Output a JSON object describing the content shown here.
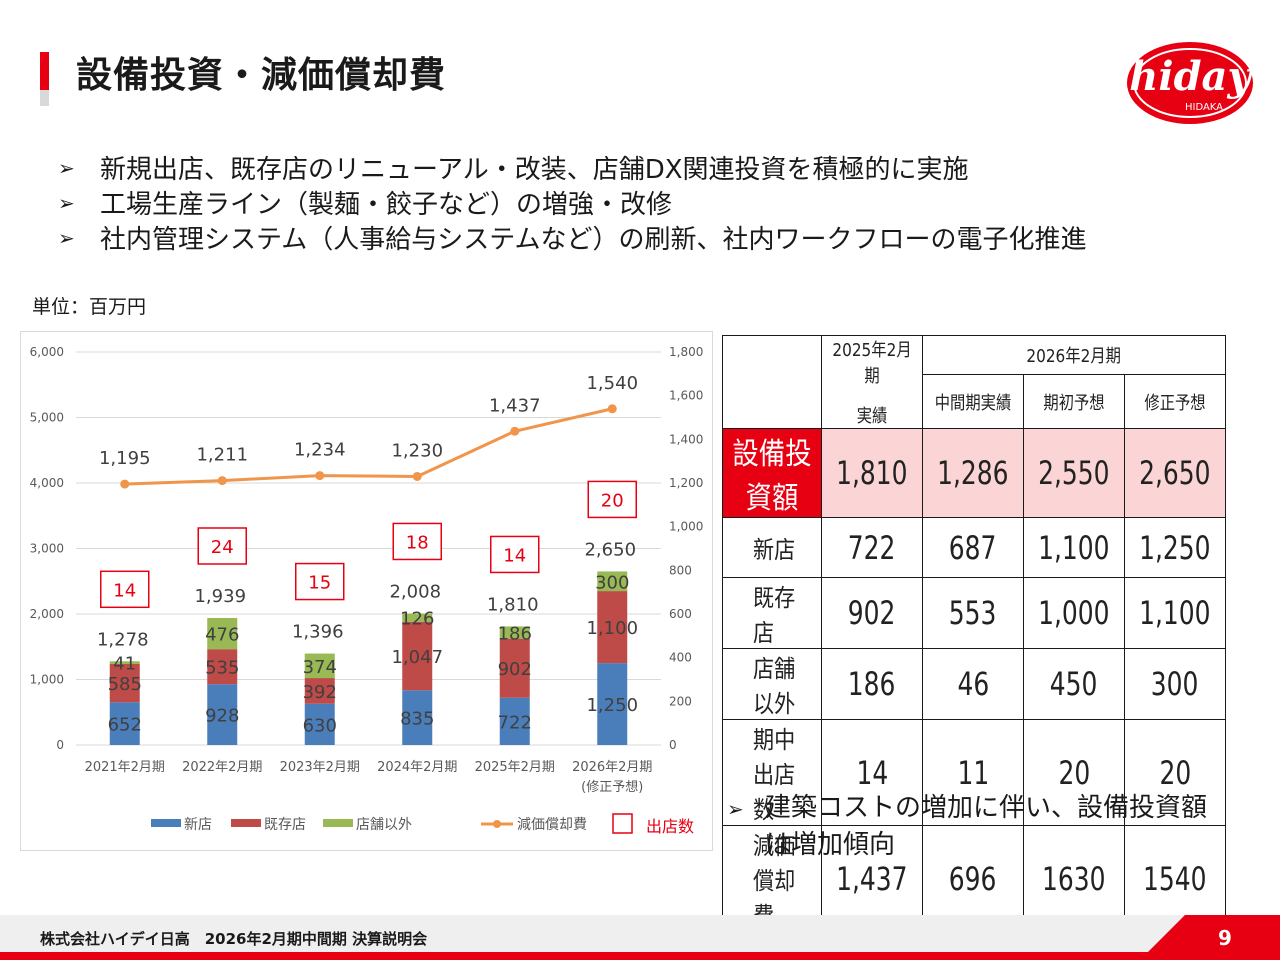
{
  "header": {
    "title": "設備投資・減価償却費",
    "logo_text": "hiday",
    "logo_subtext": "HIDAKA"
  },
  "bullets": [
    "新規出店、既存店のリニューアル・改装、店舗DX関連投資を積極的に実施",
    "工場生産ライン（製麺・餃子など）の増強・改修",
    "社内管理システム（人事給与システムなど）の刷新、社内ワークフローの電子化推進"
  ],
  "bullet_marker": "➢",
  "unit_label": "単位：百万円",
  "chart_data": {
    "type": "bar",
    "stacked": true,
    "categories": [
      "2021年2月期",
      "2022年2月期",
      "2023年2月期",
      "2024年2月期",
      "2025年2月期",
      "2026年2月期"
    ],
    "category_sublabels": [
      "",
      "",
      "",
      "",
      "",
      "(修正予想)"
    ],
    "series": [
      {
        "name": "新店",
        "values": [
          652,
          928,
          630,
          835,
          722,
          1250
        ],
        "labels": [
          "652",
          "928",
          "630",
          "835",
          "722",
          "1,250"
        ],
        "color": "#4a7ebb"
      },
      {
        "name": "既存店",
        "values": [
          585,
          535,
          392,
          1047,
          902,
          1100
        ],
        "labels": [
          "585",
          "535",
          "392",
          "1,047",
          "902",
          "1,100"
        ],
        "color": "#be4b48"
      },
      {
        "name": "店舗以外",
        "values": [
          41,
          476,
          374,
          126,
          186,
          300
        ],
        "labels": [
          "41",
          "476",
          "374",
          "126",
          "186",
          "300"
        ],
        "color": "#98b954"
      }
    ],
    "totals": [
      1278,
      1939,
      1396,
      2008,
      1810,
      2650
    ],
    "total_labels": [
      "1,278",
      "1,939",
      "1,396",
      "2,008",
      "1,810",
      "2,650"
    ],
    "line_series": {
      "name": "減価償却費",
      "values": [
        1195,
        1211,
        1234,
        1230,
        1437,
        1540
      ],
      "labels": [
        "1,195",
        "1,211",
        "1,234",
        "1,230",
        "1,437",
        "1,540"
      ],
      "color": "#f0954a",
      "axis": "right"
    },
    "store_openings": {
      "name": "出店数",
      "values": [
        14,
        24,
        15,
        18,
        14,
        20
      ],
      "color": "#e60012"
    },
    "y_left": {
      "min": 0,
      "max": 6000,
      "ticks": [
        "0",
        "1,000",
        "2,000",
        "3,000",
        "4,000",
        "5,000",
        "6,000"
      ]
    },
    "y_right": {
      "min": 0,
      "max": 1800,
      "ticks": [
        "0",
        "200",
        "400",
        "600",
        "800",
        "1,000",
        "1,200",
        "1,400",
        "1,600",
        "1,800"
      ]
    },
    "grid": true,
    "legend_position": "bottom"
  },
  "table": {
    "header_col1_line1": "2025年2月期",
    "header_col1_line2": "実績",
    "header_group": "2026年2月期",
    "header_sub": [
      "中間期実績",
      "期初予想",
      "修正予想"
    ],
    "rows": [
      {
        "label": "設備投資額",
        "values": [
          "1,810",
          "1,286",
          "2,550",
          "2,650"
        ]
      },
      {
        "label": "新店",
        "values": [
          "722",
          "687",
          "1,100",
          "1,250"
        ]
      },
      {
        "label": "既存店",
        "values": [
          "902",
          "553",
          "1,000",
          "1,100"
        ]
      },
      {
        "label": "店舗以外",
        "values": [
          "186",
          "46",
          "450",
          "300"
        ]
      },
      {
        "label": "期中出店数",
        "values": [
          "14",
          "11",
          "20",
          "20"
        ]
      },
      {
        "label": "減価償却費",
        "values": [
          "1,437",
          "696",
          "1630",
          "1540"
        ]
      }
    ]
  },
  "note": {
    "line1": "建築コストの増加に伴い、設備投資額",
    "line2": "は増加傾向"
  },
  "footer": {
    "company": "株式会社ハイデイ日高　2026年2月期中間期 決算説明会",
    "page": "9"
  },
  "colors": {
    "brand_red": "#e60012",
    "highlight_pink": "#fbd5d5"
  }
}
